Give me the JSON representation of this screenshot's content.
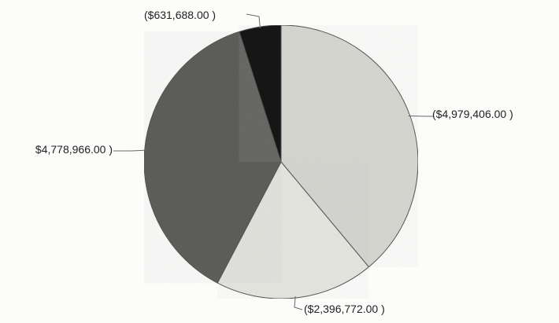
{
  "chart_data": {
    "type": "pie",
    "title": "",
    "labels": [
      "($4,979,406.00 )",
      "($2,396,772.00 )",
      "$4,778,966.00 )",
      "($631,688.00 )"
    ],
    "values": [
      4979406,
      2396772,
      4778966,
      631688
    ],
    "colors": [
      "#d7d7d2",
      "#e6e6e1",
      "#5f5f5b",
      "#151515"
    ],
    "start_angle_deg": -90,
    "direction": "clockwise",
    "legend": "none"
  }
}
